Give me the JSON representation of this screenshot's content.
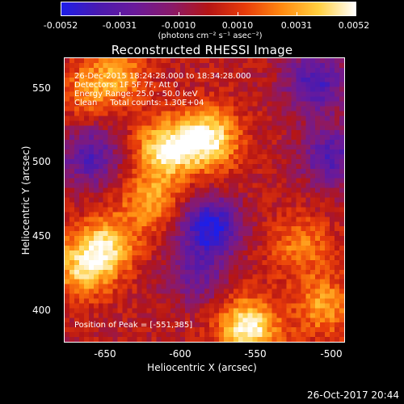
{
  "colorbar": {
    "colors": [
      "#1e1ee8",
      "#4a1ab0",
      "#6a1a9a",
      "#8a1a6a",
      "#b51515",
      "#e83c0a",
      "#ff8a10",
      "#ffd040",
      "#ffffff"
    ],
    "tick_labels": [
      "-0.0052",
      "-0.0031",
      "-0.0010",
      "0.0010",
      "0.0031",
      "0.0052"
    ],
    "unit": "(photons cm⁻² s⁻¹ asec⁻²)"
  },
  "chart_data": {
    "type": "heatmap",
    "title": "Reconstructed RHESSI Image",
    "xlabel": "Heliocentric X (arcsec)",
    "ylabel": "Heliocentric Y (arcsec)",
    "xlim": [
      -677,
      -491
    ],
    "ylim": [
      376,
      566
    ],
    "x_ticks": [
      "-650",
      "-600",
      "-550",
      "-500"
    ],
    "y_ticks": [
      "400",
      "450",
      "500",
      "550"
    ],
    "value_range": [
      -0.0052,
      0.0052
    ],
    "sources": [
      {
        "x": -582,
        "y": 512,
        "value": 0.0052
      },
      {
        "x": -610,
        "y": 505,
        "value": 0.0045
      },
      {
        "x": -650,
        "y": 440,
        "value": 0.004
      },
      {
        "x": -665,
        "y": 425,
        "value": 0.0035
      },
      {
        "x": -555,
        "y": 385,
        "value": 0.0052
      },
      {
        "x": -620,
        "y": 470,
        "value": 0.003
      },
      {
        "x": -520,
        "y": 440,
        "value": 0.0025
      },
      {
        "x": -505,
        "y": 400,
        "value": 0.003
      },
      {
        "x": -640,
        "y": 555,
        "value": 0.0025
      },
      {
        "x": -660,
        "y": 545,
        "value": 0.0022
      }
    ],
    "sinks": [
      {
        "x": -580,
        "y": 453,
        "value": -0.0052
      },
      {
        "x": -660,
        "y": 500,
        "value": -0.0035
      },
      {
        "x": -510,
        "y": 550,
        "value": -0.004
      },
      {
        "x": -500,
        "y": 500,
        "value": -0.0035
      },
      {
        "x": -590,
        "y": 420,
        "value": -0.0025
      }
    ]
  },
  "annotations": {
    "line1": "26-Dec-2015 18:24:28.000 to 18:34:28.000",
    "line2": "Detectors: 1F 5F 7F, Att 0",
    "line3": "Energy Range: 25.0 - 50.0 keV",
    "line4": "Clean     Total counts: 1.30E+04",
    "peak": "Position of Peak = [-551,385]"
  },
  "timestamp": "26-Oct-2017 20:44"
}
